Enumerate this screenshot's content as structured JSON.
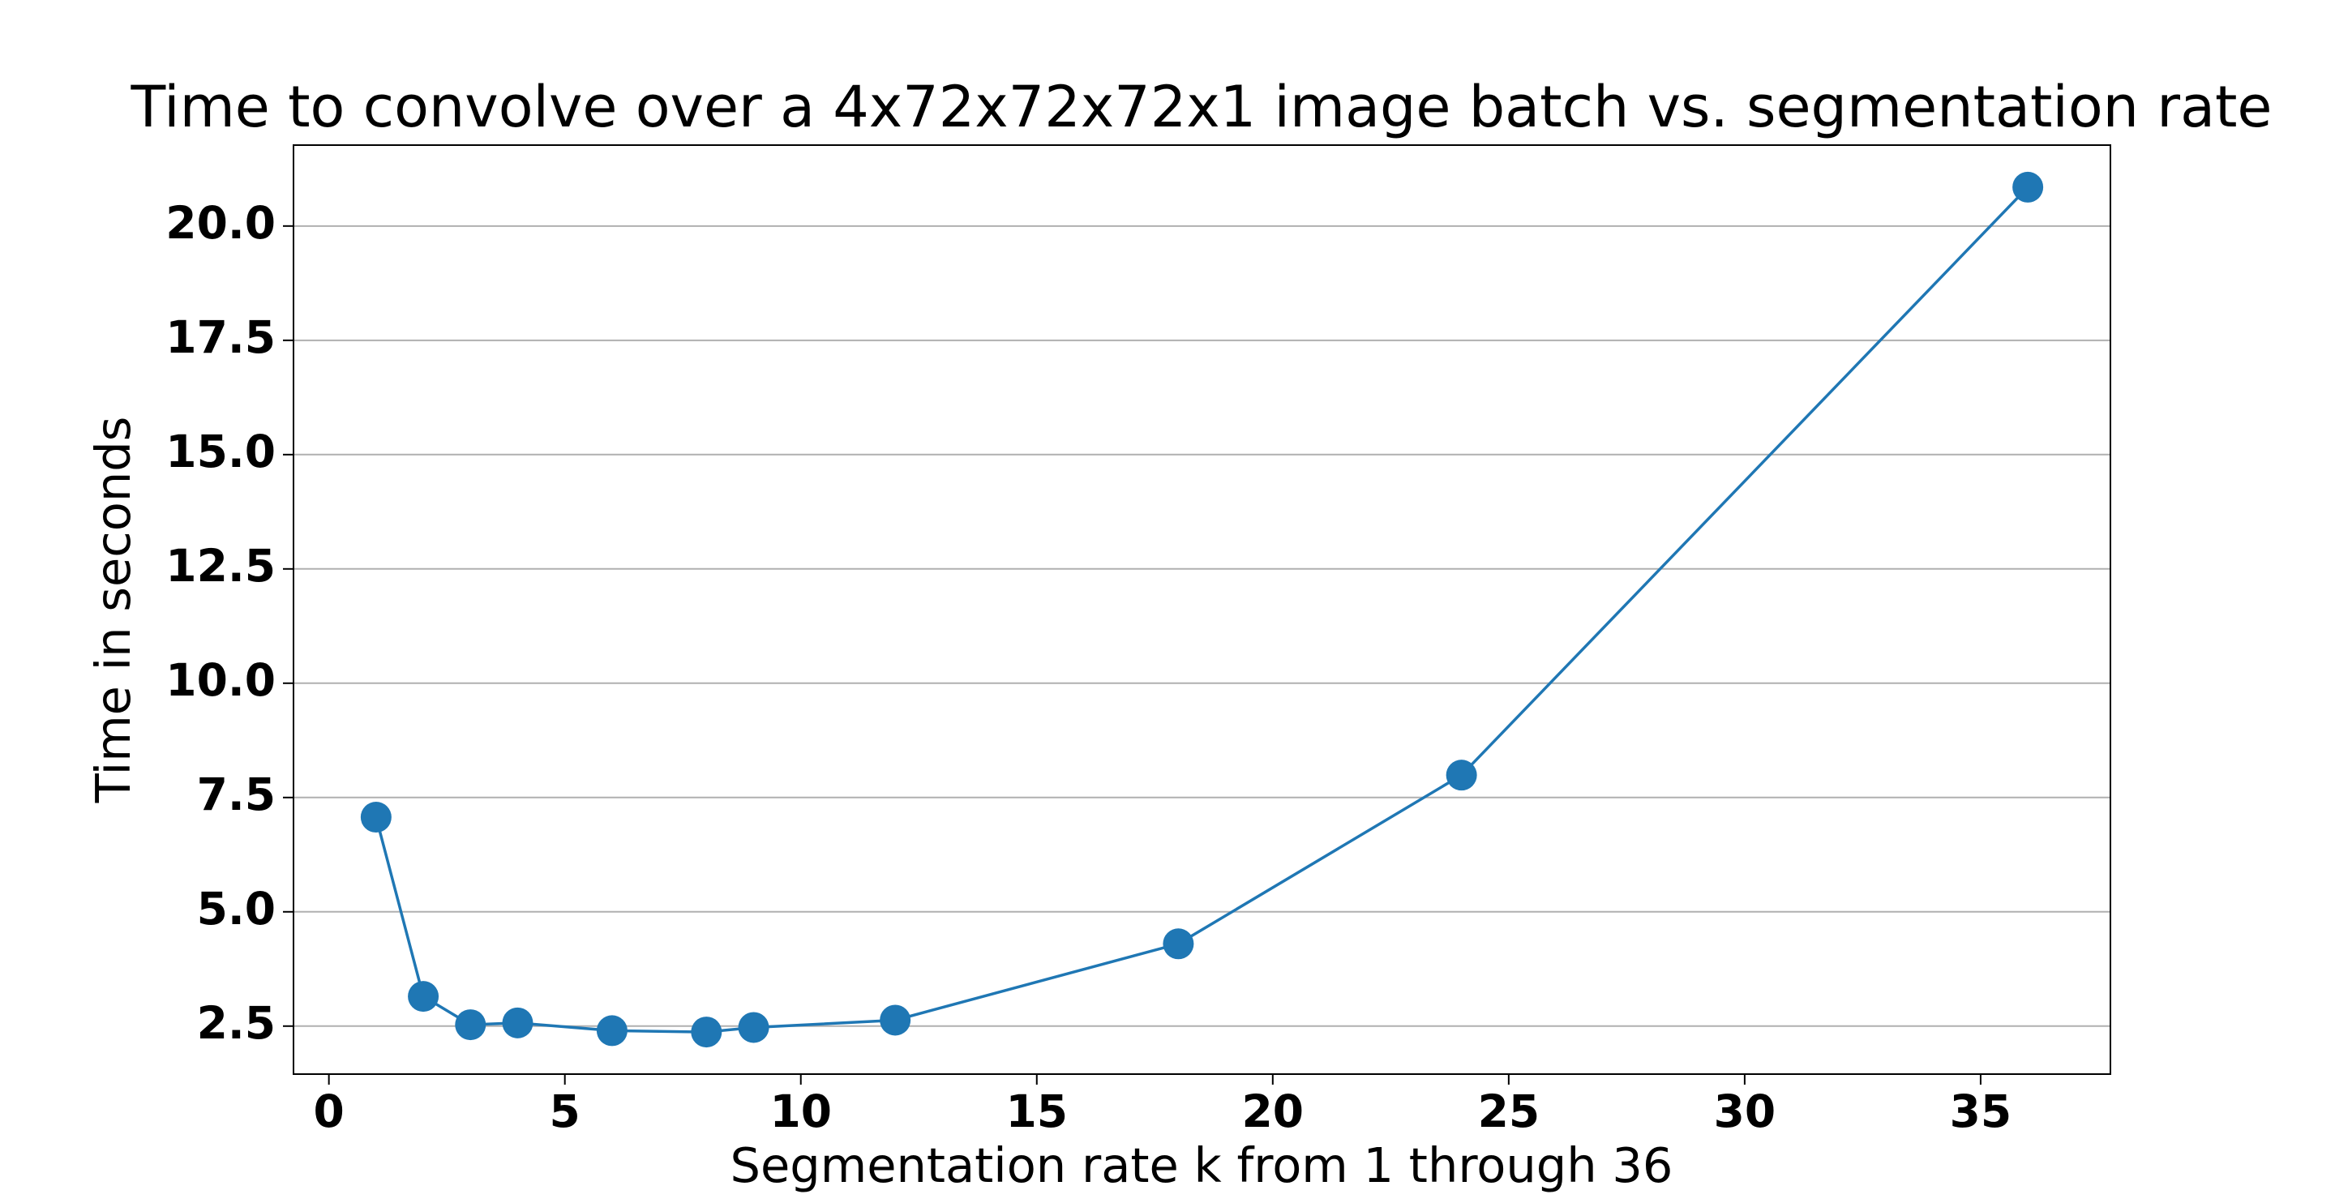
{
  "chart_data": {
    "type": "line",
    "title": "Time to convolve over a 4x72x72x72x1 image batch vs. segmentation rate",
    "xlabel": "Segmentation rate k from 1 through 36",
    "ylabel": "Time in seconds",
    "x": [
      1,
      2,
      3,
      4,
      6,
      8,
      9,
      12,
      18,
      24,
      36
    ],
    "series": [
      {
        "name": "Time",
        "color": "#1f77b4",
        "values": [
          7.07,
          3.15,
          2.53,
          2.57,
          2.4,
          2.37,
          2.47,
          2.63,
          4.3,
          7.99,
          20.85
        ]
      }
    ],
    "xlim": [
      -0.75,
      37.75
    ],
    "ylim": [
      1.45,
      21.77
    ],
    "xticks": [
      0,
      5,
      10,
      15,
      20,
      25,
      30,
      35
    ],
    "yticks": [
      2.5,
      {
        "value": 5,
        "label": "5.0"
      },
      7.5,
      {
        "value": 10,
        "label": "10.0"
      },
      12.5,
      {
        "value": 15,
        "label": "15.0"
      },
      17.5,
      {
        "value": 20,
        "label": "20.0"
      }
    ],
    "grid": "y"
  }
}
